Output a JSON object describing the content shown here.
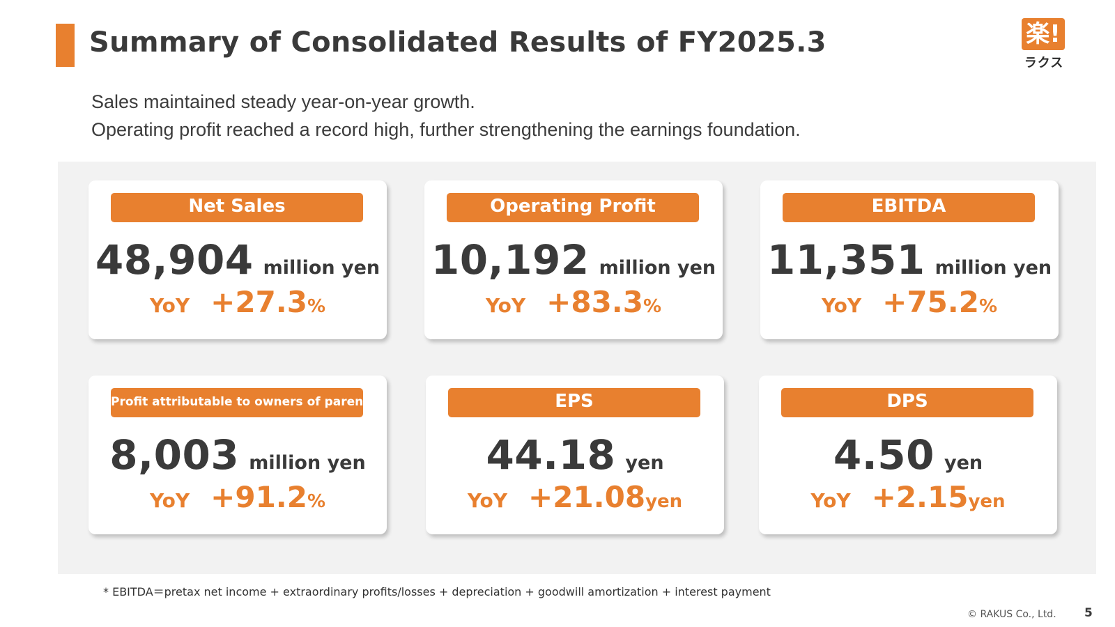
{
  "header": {
    "title": "Summary of Consolidated Results of FY2025.3"
  },
  "logo": {
    "mark": "楽!",
    "text": "ラクス"
  },
  "subtitle": {
    "line1": "Sales maintained steady year-on-year growth.",
    "line2": "Operating profit reached a record high, further strengthening the earnings foundation."
  },
  "cards": [
    {
      "label": "Net Sales",
      "value": "48,904",
      "unit": "million yen",
      "yoy_label": "YoY",
      "yoy_value": "+27.3",
      "yoy_unit": "%"
    },
    {
      "label": "Operating Profit",
      "value": "10,192",
      "unit": "million yen",
      "yoy_label": "YoY",
      "yoy_value": "+83.3",
      "yoy_unit": "%"
    },
    {
      "label": "EBITDA",
      "value": "11,351",
      "unit": "million yen",
      "yoy_label": "YoY",
      "yoy_value": "+75.2",
      "yoy_unit": "%"
    },
    {
      "label": "Profit attributable to owners of parent",
      "value": "8,003",
      "unit": "million yen",
      "yoy_label": "YoY",
      "yoy_value": "+91.2",
      "yoy_unit": "%"
    },
    {
      "label": "EPS",
      "value": "44.18",
      "unit": "yen",
      "yoy_label": "YoY",
      "yoy_value": "+21.08",
      "yoy_unit": "yen"
    },
    {
      "label": "DPS",
      "value": "4.50",
      "unit": "yen",
      "yoy_label": "YoY",
      "yoy_value": "+2.15",
      "yoy_unit": "yen"
    }
  ],
  "footnote": "* EBITDA＝pretax net income + extraordinary profits/losses + depreciation + goodwill amortization + interest payment",
  "footer": {
    "copyright": "© RAKUS Co., Ltd.",
    "page_number": "5"
  },
  "colors": {
    "accent": "#e8802f",
    "text": "#3a3a3a",
    "panel": "#f2f2f2"
  }
}
